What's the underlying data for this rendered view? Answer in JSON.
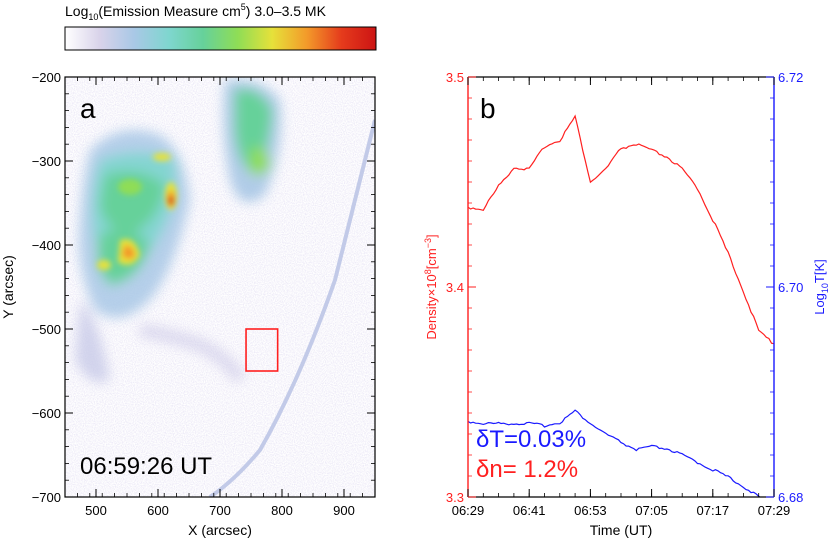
{
  "colorbar": {
    "title_prefix": "Log",
    "title_sub": "10",
    "title_mid": "(Emission Measure cm",
    "title_sup": "5",
    "title_suffix": ") 3.0–3.5 MK",
    "colors": [
      "#ffffff",
      "#d9d3ea",
      "#a9c8e6",
      "#7fd6cf",
      "#66d19a",
      "#8fdd56",
      "#e6e13a",
      "#f39a2a",
      "#e53b1c",
      "#cc1414"
    ]
  },
  "panel_a": {
    "label": "a",
    "timestamp": "06:59:26 UT",
    "xlabel": "X (arcsec)",
    "ylabel": "Y (arcsec)",
    "xlim": [
      450,
      950
    ],
    "ylim": [
      -700,
      -200
    ],
    "xticks": [
      500,
      600,
      700,
      800,
      900
    ],
    "xtick_labels": [
      "500",
      "600",
      "700",
      "800",
      "900"
    ],
    "yticks": [
      -700,
      -600,
      -500,
      -400,
      -300,
      -200
    ],
    "ytick_labels": [
      "−700",
      "−600",
      "−500",
      "−400",
      "−300",
      "−200"
    ],
    "box": {
      "x": [
        742,
        793
      ],
      "y": [
        -550,
        -500
      ],
      "color": "#ff2020"
    }
  },
  "panel_b": {
    "label": "b",
    "xlabel": "Time (UT)",
    "xtick_labels": [
      "06:29",
      "06:41",
      "06:53",
      "07:05",
      "07:17",
      "07:29"
    ],
    "left_axis": {
      "label_main": "Density×10",
      "label_sup": "8",
      "label_unit": "[cm",
      "label_unit_sup": "−3",
      "label_close": "]",
      "color": "#ff2020",
      "ylim": [
        3.3,
        3.5
      ],
      "ticks": [
        "3.3",
        "3.4",
        "3.5"
      ]
    },
    "right_axis": {
      "label_main": "Log",
      "label_sub": "10",
      "label_rest": "T[K]",
      "color": "#1a1aff",
      "ylim": [
        6.68,
        6.72
      ],
      "ticks": [
        "6.68",
        "6.70",
        "6.72"
      ]
    },
    "stat_T": "δT=0.03%",
    "stat_n": "δn=  1.2%"
  },
  "chart_data": [
    {
      "type": "heatmap",
      "title": "Log10(Emission Measure cm5) 3.0–3.5 MK",
      "xlabel": "X (arcsec)",
      "ylabel": "Y (arcsec)",
      "xlim": [
        450,
        950
      ],
      "ylim": [
        -700,
        -200
      ],
      "annotation": "06:59:26 UT"
    },
    {
      "type": "line",
      "xlabel": "Time (UT)",
      "x_minutes": [
        0,
        3,
        6,
        9,
        12,
        15,
        18,
        21,
        24,
        27,
        30,
        33,
        36,
        39,
        42,
        45,
        48,
        51,
        54,
        57,
        60
      ],
      "x_start": "06:29",
      "series": [
        {
          "name": "Density",
          "axis": "left",
          "color": "#ff2020",
          "values": [
            3.438,
            3.437,
            3.448,
            3.457,
            3.456,
            3.467,
            3.47,
            3.481,
            3.45,
            3.456,
            3.466,
            3.468,
            3.465,
            3.462,
            3.456,
            3.447,
            3.432,
            3.416,
            3.398,
            3.379,
            3.373
          ]
        },
        {
          "name": "Temperature",
          "axis": "right",
          "color": "#1a1aff",
          "values": [
            6.6872,
            6.687,
            6.687,
            6.687,
            6.687,
            6.6868,
            6.6871,
            6.6882,
            6.687,
            6.686,
            6.6852,
            6.6845,
            6.6848,
            6.6846,
            6.684,
            6.6833,
            6.6826,
            6.6819,
            6.681,
            6.68,
            6.679
          ]
        }
      ]
    }
  ]
}
